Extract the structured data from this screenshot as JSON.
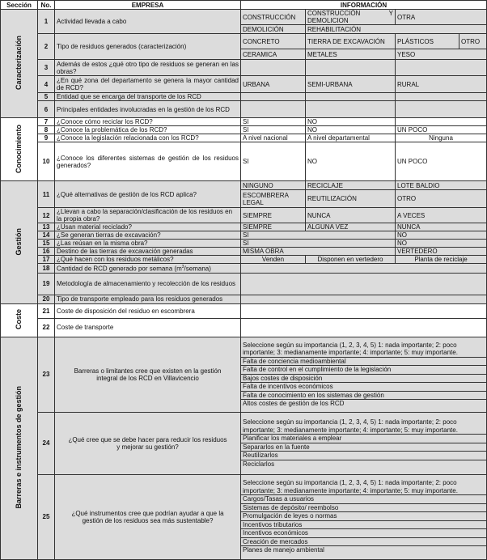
{
  "header": {
    "seccion": "Sección",
    "no": "No.",
    "empresa": "EMPRESA",
    "informacion": "INFORMACIÓN"
  },
  "sections": {
    "caracterizacion": "Caracterización",
    "conocimiento": "Conocimiento",
    "gestion": "Gestión",
    "coste": "Coste",
    "barreras": "Barreras e instrumentos de gestión"
  },
  "rows": {
    "r1": {
      "no": "1",
      "q": "Actividad llevada a cabo",
      "a": "CONSTRUCCIÓN",
      "b": "CONSTRUCCIÓN Y DEMOLICION",
      "c": "OTRA",
      "a2": "DEMOLICIÓN",
      "b2": "REHABILITACIÓN"
    },
    "r2": {
      "no": "2",
      "q": "Tipo de residuos generados (caracterización)",
      "a": "CONCRETO",
      "b": "TIERRA DE EXCAVACIÓN",
      "c": "PLÁSTICOS",
      "d": "OTRO",
      "a2": "CERAMICA",
      "b2": "METALES",
      "c2": "YESO"
    },
    "r3": {
      "no": "3",
      "q": "Además de estos ¿qué otro tipo de residuos se generan en las obras?"
    },
    "r4": {
      "no": "4",
      "q": "¿En qué zona del departamento se genera la mayor cantidad de RCD?",
      "a": "URBANA",
      "b": "SEMI-URBANA",
      "c": "RURAL"
    },
    "r5": {
      "no": "5",
      "q": "Entidad que se encarga del transporte de los RCD"
    },
    "r6": {
      "no": "6",
      "q": "Principales entidades involucradas en la gestión de los RCD"
    },
    "r7": {
      "no": "7",
      "q": "¿Conoce cómo reciclar los RCD?",
      "a": "SI",
      "b": "NO"
    },
    "r8": {
      "no": "8",
      "q": "¿Conoce la problemática de los RCD?",
      "a": "SI",
      "b": "NO",
      "c": "UN POCO"
    },
    "r9": {
      "no": "9",
      "q": "¿Conoce la legislación relacionada con los RCD?",
      "a": "A nivel nacional",
      "b": "A nivel departamental",
      "c": "Ninguna"
    },
    "r10": {
      "no": "10",
      "q": "¿Conoce los diferentes sistemas de gestión de los residuos generados?",
      "a": "SI",
      "b": "NO",
      "c": "UN POCO"
    },
    "r11": {
      "no": "11",
      "q": "¿Qué alternativas de gestión de los RCD aplica?",
      "a": "NINGUNO",
      "b": "RECICLAJE",
      "c": "LOTE BALDIO",
      "a2": "ESCOMBRERA LEGAL",
      "b2": "REUTILIZACIÓN",
      "c2": "OTRO"
    },
    "r12": {
      "no": "12",
      "q": "¿Llevan a cabo la separación/clasificación de los residuos en la propia obra?",
      "a": "SIEMPRE",
      "b": "NUNCA",
      "c": "A VECES"
    },
    "r13": {
      "no": "13",
      "q": "¿Usan material reciclado?",
      "a": "SIEMPRE",
      "b": "ALGUNA VEZ",
      "c": "NUNCA"
    },
    "r14": {
      "no": "14",
      "q": "¿Se generan tierras de excavación?",
      "a": "SI",
      "c": "NO"
    },
    "r15": {
      "no": "15",
      "q": "¿Las reúsan en la misma obra?",
      "a": "SI",
      "c": "NO"
    },
    "r16": {
      "no": "16",
      "q": "Destino de las tierras de excavación generadas",
      "a": "MISMA OBRA",
      "c": "VERTEDERO"
    },
    "r17": {
      "no": "17",
      "q": "¿Qué hacen con los residuos metálicos?",
      "a": "Venden",
      "b": "Disponen en vertedero",
      "c": "Planta de reciclaje"
    },
    "r18": {
      "no": "18",
      "q": "Cantidad de RCD generado por semana (m",
      "sup": "3",
      "q2": "/semana)"
    },
    "r19": {
      "no": "19",
      "q": "Metodología de almacenamiento y recolección de los residuos"
    },
    "r20": {
      "no": "20",
      "q": "Tipo de transporte empleado para los residuos generados"
    },
    "r21": {
      "no": "21",
      "q": "Coste de disposición del residuo en escombrera"
    },
    "r22": {
      "no": "22",
      "q": "Coste de transporte"
    },
    "r23": {
      "no": "23",
      "q": "Barreras o limitantes cree que existen en la gestión integral de los RCD en Villavicencio",
      "items": [
        "Seleccione según su importancia (1, 2, 3, 4, 5) 1: nada importante; 2: poco importante; 3: medianamente importante; 4: importante; 5: muy importante.",
        "Falta de conciencia medioambiental",
        "Falta de control en el cumplimiento de la legislación",
        "Bajos costes de disposición",
        "Falta de incentivos económicos",
        "Falta de conocimiento en los sistemas de gestión",
        "Altos costes de gestión de los RCD"
      ]
    },
    "r24": {
      "no": "24",
      "q": "¿Qué cree que se debe hacer para reducir los residuos y mejorar su gestión?",
      "items": [
        "Seleccione según su importancia (1, 2, 3, 4, 5) 1: nada importante; 2: poco importante; 3: medianamente importante; 4: importante; 5: muy importante.",
        "Planificar los materiales a emplear",
        "Separarlos en la fuente",
        "Reutilizarlos",
        "Reciclarlos"
      ]
    },
    "r25": {
      "no": "25",
      "q": "¿Qué instrumentos cree que podrían ayudar a que la gestión de los residuos sea más sustentable?",
      "items": [
        "Seleccione según su importancia (1, 2, 3, 4, 5) 1: nada importante; 2: poco importante; 3: medianamente importante; 4: importante; 5: muy importante.",
        "Cargos/Tasas a usuarios",
        "Sistemas de depósito/ reembolso",
        "Promulgación de leyes o normas",
        "Incentivos tributarios",
        "Incentivos económicos",
        "Creación de mercados",
        "Planes de manejo ambiental"
      ]
    }
  }
}
